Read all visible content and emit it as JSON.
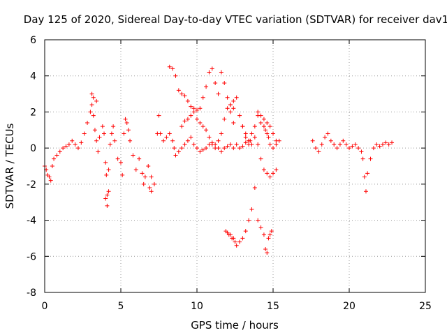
{
  "chart_data": {
    "type": "scatter",
    "title": "Day 125 of 2020, Sidereal Day-to-day VTEC variation (SDTVAR) for receiver dav1",
    "xlabel": "GPS time / hours",
    "ylabel": "SDTVAR / TECUs",
    "xlim": [
      0,
      25
    ],
    "ylim": [
      -8,
      6
    ],
    "xticks": [
      "0",
      "5",
      "10",
      "15",
      "20",
      "25"
    ],
    "yticks": [
      "-8",
      "-6",
      "-4",
      "-2",
      "0",
      "2",
      "4",
      "6"
    ],
    "grid": true,
    "marker": "+",
    "color": "#ff0000",
    "series": [
      {
        "name": "SDTVAR",
        "x": [
          0.0,
          0.1,
          0.2,
          0.3,
          0.4,
          0.5,
          0.6,
          0.8,
          1.0,
          1.2,
          1.4,
          1.6,
          1.8,
          2.0,
          2.2,
          2.4,
          2.6,
          2.8,
          3.0,
          3.1,
          3.2,
          3.3,
          3.4,
          3.5,
          3.6,
          3.8,
          3.9,
          4.0,
          4.05,
          4.1,
          4.2,
          4.3,
          4.4,
          4.5,
          4.6,
          4.8,
          5.0,
          5.1,
          5.2,
          5.3,
          5.4,
          5.5,
          5.6,
          5.8,
          6.0,
          6.2,
          6.4,
          6.5,
          6.6,
          6.8,
          7.0,
          7.2,
          7.4,
          7.5,
          7.6,
          7.8,
          8.0,
          8.2,
          8.4,
          8.5,
          8.6,
          8.8,
          9.0,
          9.2,
          9.4,
          9.6,
          9.8,
          10.0,
          10.2,
          10.4,
          10.6,
          10.8,
          11.0,
          11.2,
          11.4,
          11.6,
          11.8,
          12.0,
          12.2,
          12.4,
          12.6,
          12.8,
          13.0,
          13.2,
          13.4,
          13.5,
          13.6,
          13.8,
          14.0,
          14.2,
          14.4,
          14.5,
          14.6,
          14.7,
          14.8,
          15.0,
          15.2,
          15.4,
          17.6,
          17.8,
          18.0,
          18.2,
          18.4,
          18.6,
          18.8,
          19.0,
          19.2,
          19.4,
          19.6,
          19.8,
          20.0,
          20.2,
          20.4,
          20.6,
          20.8,
          20.9,
          21.0,
          21.1,
          21.2,
          21.4,
          21.6,
          21.8,
          22.0,
          22.2,
          22.4,
          22.6,
          22.8,
          8.2,
          8.4,
          8.6,
          8.8,
          9.0,
          9.2,
          9.4,
          9.6,
          9.8,
          10.0,
          10.2,
          10.4,
          10.6,
          10.8,
          11.0,
          11.2,
          11.4,
          11.6,
          11.8,
          12.0,
          12.2,
          12.4,
          11.9,
          12.0,
          12.1,
          12.2,
          12.3,
          12.4,
          12.5,
          12.6,
          12.8,
          13.0,
          13.2,
          13.4,
          13.6,
          13.8,
          14.0,
          14.2,
          14.4,
          14.5,
          14.6,
          14.7,
          14.8,
          14.9,
          13.8,
          14.0,
          14.2,
          14.4,
          14.6,
          14.8,
          15.0,
          15.2,
          9.0,
          9.2,
          9.4,
          9.6,
          9.8,
          10.0,
          10.2,
          10.4,
          10.6,
          10.8,
          11.0,
          11.2,
          11.4,
          11.6,
          11.8,
          12.0,
          12.2,
          12.4,
          12.6,
          13.0,
          13.2,
          13.4,
          13.6,
          14.0,
          14.2,
          14.4,
          14.6,
          14.8,
          15.0,
          15.2,
          3.1,
          3.2,
          3.4,
          4.0,
          4.1,
          4.2,
          6.9,
          7.0,
          12.2,
          12.4,
          12.8,
          13.0,
          13.2,
          13.4
        ],
        "y": [
          -1.0,
          -1.2,
          -1.5,
          -1.6,
          -1.8,
          -1.0,
          -0.6,
          -0.4,
          -0.2,
          0.0,
          0.1,
          0.2,
          0.4,
          0.2,
          0.0,
          0.3,
          0.8,
          1.4,
          2.0,
          2.4,
          1.8,
          1.0,
          0.4,
          -0.2,
          0.6,
          1.2,
          0.8,
          -0.8,
          -1.5,
          -2.6,
          -1.2,
          0.2,
          0.8,
          1.2,
          0.4,
          -0.6,
          -0.8,
          -1.5,
          0.8,
          1.6,
          1.4,
          1.0,
          0.4,
          -0.4,
          -1.2,
          -0.6,
          -1.4,
          -2.0,
          -1.6,
          -1.0,
          -1.6,
          -2.0,
          0.8,
          1.8,
          0.8,
          0.4,
          0.6,
          0.8,
          0.4,
          0.0,
          -0.4,
          -0.2,
          0.0,
          0.2,
          0.4,
          0.6,
          0.2,
          0.0,
          -0.2,
          -0.1,
          0.0,
          0.2,
          0.3,
          0.2,
          0.0,
          -0.2,
          0.0,
          0.1,
          0.2,
          0.0,
          0.2,
          0.0,
          0.1,
          0.3,
          0.2,
          0.4,
          0.8,
          1.2,
          1.8,
          1.4,
          1.2,
          1.0,
          0.8,
          0.6,
          0.2,
          0.0,
          0.2,
          0.4,
          0.4,
          0.0,
          -0.2,
          0.2,
          0.6,
          0.8,
          0.4,
          0.2,
          0.0,
          0.2,
          0.4,
          0.2,
          0.0,
          0.1,
          0.2,
          0.0,
          -0.2,
          -0.6,
          -1.6,
          -2.4,
          -1.4,
          -0.6,
          0.0,
          0.2,
          0.1,
          0.2,
          0.3,
          0.2,
          0.3,
          4.5,
          4.4,
          4.0,
          3.2,
          3.0,
          2.9,
          2.6,
          2.3,
          2.2,
          2.1,
          2.2,
          2.8,
          3.4,
          4.2,
          4.4,
          3.6,
          3.0,
          4.2,
          3.6,
          2.8,
          2.4,
          1.4,
          -4.6,
          -4.7,
          -4.8,
          -4.8,
          -5.0,
          -5.0,
          -5.2,
          -5.4,
          -5.2,
          -5.0,
          -4.6,
          -4.0,
          -3.4,
          -2.2,
          -4.0,
          -4.4,
          -4.8,
          -5.6,
          -5.8,
          -5.0,
          -4.8,
          -4.6,
          0.6,
          0.2,
          -0.6,
          -1.2,
          -1.4,
          -1.6,
          -1.4,
          -1.2,
          1.2,
          1.5,
          1.6,
          1.8,
          2.0,
          1.6,
          1.4,
          1.2,
          1.0,
          0.6,
          0.2,
          0.0,
          0.4,
          0.8,
          1.6,
          2.2,
          2.4,
          2.6,
          2.8,
          1.2,
          0.6,
          0.4,
          0.2,
          2.0,
          1.8,
          1.6,
          1.4,
          1.2,
          0.8,
          0.4,
          3.0,
          2.8,
          2.6,
          -2.8,
          -3.2,
          -2.4,
          -2.2,
          -2.4,
          2.0,
          2.2,
          1.8,
          1.2,
          0.8,
          0.4
        ]
      }
    ]
  }
}
